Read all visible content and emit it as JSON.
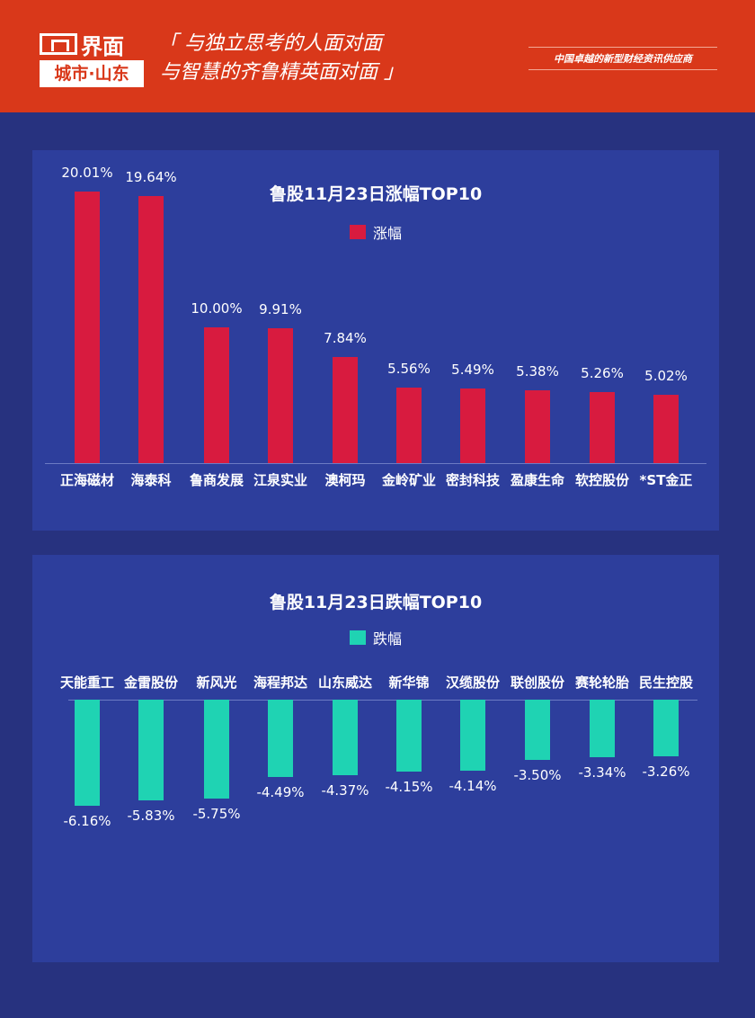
{
  "header": {
    "logo_name": "界面",
    "logo_sub": "城市·山东",
    "slogan_line1": "「 与独立思考的人面对面",
    "slogan_line2": "与智慧的齐鲁精英面对面 」",
    "tagline": "中国卓越的新型财经资讯供应商"
  },
  "colors": {
    "header": "#d9381a",
    "background": "#27327f",
    "panel": "#2d3e9c",
    "gain": "#d81b3f",
    "loss": "#1fd3b3"
  },
  "chart_data": [
    {
      "type": "bar",
      "title": "鲁股11月23日涨幅TOP10",
      "legend": "涨幅",
      "unit": "%",
      "categories": [
        "正海磁材",
        "海泰科",
        "鲁商发展",
        "江泉实业",
        "澳柯玛",
        "金岭矿业",
        "密封科技",
        "盈康生命",
        "软控股份",
        "*ST金正"
      ],
      "values": [
        20.01,
        19.64,
        10.0,
        9.91,
        7.84,
        5.56,
        5.49,
        5.38,
        5.26,
        5.02
      ],
      "labels": [
        "20.01%",
        "19.64%",
        "10.00%",
        "9.91%",
        "7.84%",
        "5.56%",
        "5.49%",
        "5.38%",
        "5.26%",
        "5.02%"
      ]
    },
    {
      "type": "bar",
      "title": "鲁股11月23日跌幅TOP10",
      "legend": "跌幅",
      "unit": "%",
      "categories": [
        "天能重工",
        "金雷股份",
        "新风光",
        "海程邦达",
        "山东威达",
        "新华锦",
        "汉缆股份",
        "联创股份",
        "赛轮轮胎",
        "民生控股"
      ],
      "values": [
        -6.16,
        -5.83,
        -5.75,
        -4.49,
        -4.37,
        -4.15,
        -4.14,
        -3.5,
        -3.34,
        -3.26
      ],
      "labels": [
        "-6.16%",
        "-5.83%",
        "-5.75%",
        "-4.49%",
        "-4.37%",
        "-4.15%",
        "-4.14%",
        "-3.50%",
        "-3.34%",
        "-3.26%"
      ]
    }
  ]
}
